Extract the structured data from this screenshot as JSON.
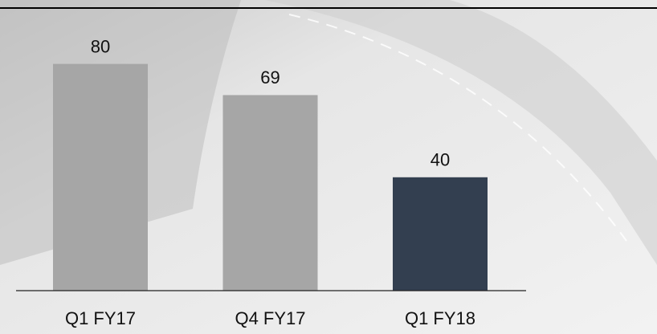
{
  "chart_data": {
    "type": "bar",
    "categories": [
      "Q1 FY17",
      "Q4 FY17",
      "Q1 FY18"
    ],
    "values": [
      80,
      69,
      40
    ],
    "colors": [
      "#a6a6a6",
      "#a6a6a6",
      "#333f50"
    ]
  }
}
